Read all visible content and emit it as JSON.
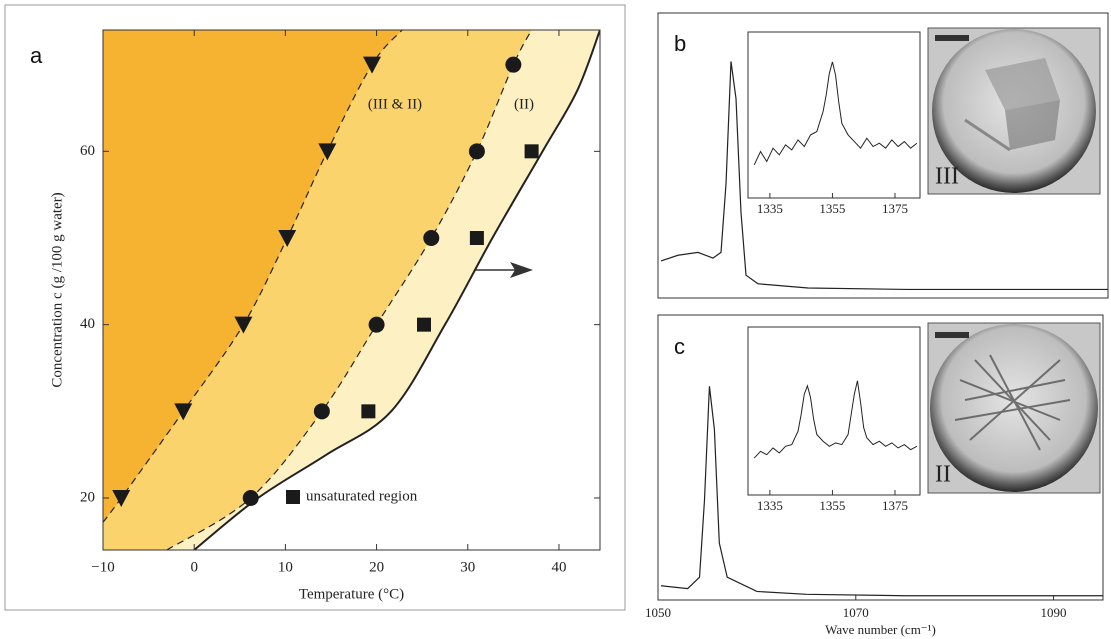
{
  "chart_data": [
    {
      "type": "scatter",
      "panel": "a",
      "xlabel": "Temperature (°C)",
      "ylabel": "Concentration c (g /100 g water)",
      "xlim": [
        -10,
        44.5
      ],
      "ylim": [
        14,
        74
      ],
      "xticks": [
        {
          "value": -10,
          "label": "−10"
        },
        0,
        10,
        20,
        30,
        40
      ],
      "yticks": [
        20,
        40,
        60
      ],
      "series": [
        {
          "marker": "triangle",
          "color": "#1a1a1a",
          "x": [
            -8,
            -1.2,
            5.4,
            10.2,
            14.6,
            19.5
          ],
          "y": [
            20,
            30,
            40,
            50,
            60,
            70
          ]
        },
        {
          "marker": "circle",
          "color": "#1a1a1a",
          "x": [
            6.2,
            14,
            20,
            26,
            31,
            35
          ],
          "y": [
            20,
            30,
            40,
            50,
            60,
            70
          ]
        },
        {
          "name": "unsaturated region",
          "marker": "square",
          "color": "#1a1a1a",
          "x": [
            19.1,
            25.2,
            31,
            37
          ],
          "y": [
            30,
            40,
            50,
            60
          ]
        }
      ],
      "boundaries": [
        {
          "dash": false,
          "fill": "#fdf0c2",
          "x": [
            0,
            7,
            14.5,
            21.6,
            27.5,
            32.7,
            38.2,
            42,
            44.5
          ],
          "y": [
            14,
            20,
            25,
            30,
            40,
            50,
            60,
            67,
            74
          ]
        },
        {
          "dash": true,
          "fill": "#fbd36d",
          "x": [
            -3,
            6.2,
            14,
            20,
            26,
            31,
            35,
            37
          ],
          "y": [
            14,
            20,
            30,
            40,
            50,
            60,
            70,
            74
          ]
        },
        {
          "dash": true,
          "fill": "#f6b332",
          "x": [
            -10,
            -8,
            -1.2,
            5.4,
            10.2,
            14.6,
            19.5,
            22.8
          ],
          "y": [
            17.2,
            20,
            30,
            40,
            50,
            60,
            70,
            74
          ]
        }
      ],
      "annotations": [
        "(III & II)",
        "(II)"
      ]
    },
    {
      "type": "line",
      "panel": "b",
      "xlim": [
        1050,
        1095
      ],
      "ylim": [
        0,
        100
      ],
      "series": [
        {
          "color": "#222",
          "x": [
            1050.3,
            1052,
            1054,
            1055.5,
            1056.3,
            1056.8,
            1057.3,
            1057.8,
            1058.3,
            1058.8,
            1060,
            1065,
            1075,
            1085,
            1095
          ],
          "y": [
            13,
            15,
            16,
            14,
            16,
            40,
            83,
            70,
            30,
            8,
            5,
            3.5,
            3,
            3,
            3
          ]
        }
      ],
      "inset": {
        "xlim": [
          1328,
          1383
        ],
        "ylim": [
          0,
          100
        ],
        "xticks": [
          1335,
          1355,
          1375
        ],
        "x": [
          1330,
          1332,
          1334,
          1336,
          1338,
          1340,
          1342,
          1344,
          1346,
          1348,
          1350,
          1352,
          1353,
          1354,
          1355,
          1356,
          1357,
          1358,
          1360,
          1362,
          1364,
          1366,
          1368,
          1370,
          1372,
          1374,
          1376,
          1378,
          1380,
          1382
        ],
        "y": [
          20,
          28,
          22,
          30,
          26,
          32,
          29,
          35,
          31,
          38,
          40,
          52,
          62,
          75,
          82,
          74,
          58,
          45,
          38,
          34,
          30,
          36,
          31,
          33,
          30,
          35,
          31,
          34,
          30,
          33
        ]
      },
      "photo_label": "III"
    },
    {
      "type": "line",
      "panel": "c",
      "xlim": [
        1050,
        1095
      ],
      "ylim": [
        0,
        100
      ],
      "xlabel": "Wave number (cm⁻¹)",
      "xticks": [
        1050,
        1070,
        1090
      ],
      "series": [
        {
          "color": "#222",
          "x": [
            1050.3,
            1053,
            1054.2,
            1054.7,
            1055.2,
            1055.7,
            1056.2,
            1057,
            1060,
            1065,
            1075,
            1095
          ],
          "y": [
            5,
            4,
            8,
            35,
            75,
            60,
            20,
            8,
            3,
            2,
            1.5,
            1.5
          ]
        }
      ],
      "inset": {
        "xlim": [
          1328,
          1383
        ],
        "ylim": [
          0,
          100
        ],
        "xticks": [
          1335,
          1355,
          1375
        ],
        "x": [
          1330,
          1332,
          1334,
          1336,
          1338,
          1340,
          1342,
          1344,
          1345,
          1346,
          1347,
          1348,
          1349,
          1350,
          1352,
          1354,
          1356,
          1358,
          1360,
          1361,
          1362,
          1363,
          1364,
          1365,
          1366,
          1368,
          1370,
          1372,
          1374,
          1376,
          1378,
          1380,
          1382
        ],
        "y": [
          22,
          26,
          24,
          28,
          25,
          29,
          30,
          38,
          48,
          60,
          65,
          58,
          45,
          36,
          32,
          29,
          31,
          30,
          36,
          48,
          60,
          68,
          55,
          40,
          34,
          30,
          32,
          29,
          31,
          28,
          30,
          27,
          29
        ]
      },
      "photo_label": "II"
    }
  ]
}
